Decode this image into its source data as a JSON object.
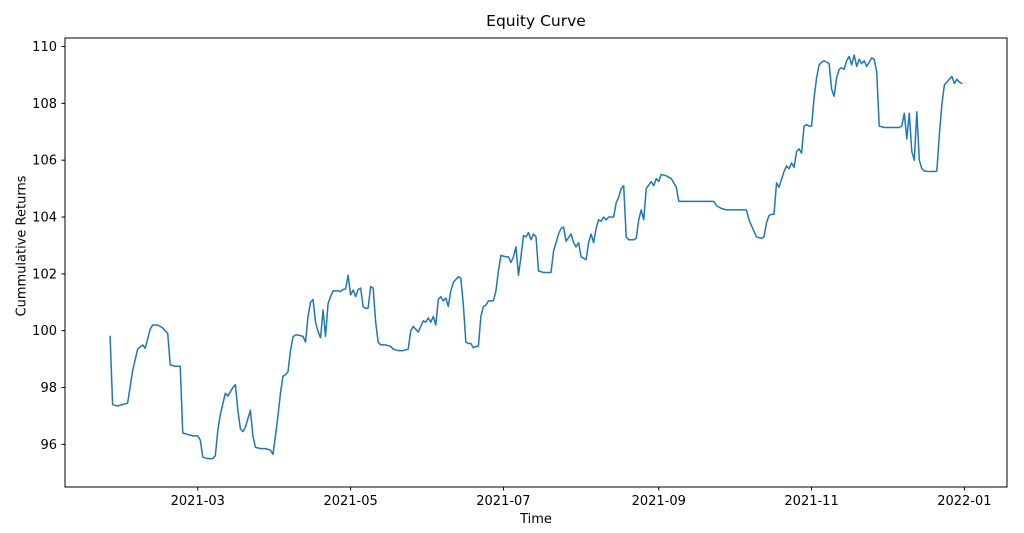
{
  "chart_data": {
    "type": "line",
    "title": "Equity Curve",
    "xlabel": "Time",
    "ylabel": "Cummulative Returns",
    "line_color": "#1f77b4",
    "background_color": "#ffffff",
    "axes_color": "#000000",
    "grid": false,
    "legend": null,
    "xlim": [
      "2021-01-07",
      "2022-01-18"
    ],
    "ylim": [
      94.5,
      110.3
    ],
    "y_ticks": [
      96,
      98,
      100,
      102,
      104,
      106,
      108,
      110
    ],
    "x_ticks": [
      {
        "date": "2021-03-01",
        "label": "2021-03"
      },
      {
        "date": "2021-05-01",
        "label": "2021-05"
      },
      {
        "date": "2021-07-01",
        "label": "2021-07"
      },
      {
        "date": "2021-09-01",
        "label": "2021-09"
      },
      {
        "date": "2021-11-01",
        "label": "2021-11"
      },
      {
        "date": "2022-01-01",
        "label": "2022-01"
      }
    ],
    "series": [
      {
        "name": "Cummulative Returns",
        "points": [
          [
            "2021-01-25",
            99.8
          ],
          [
            "2021-01-26",
            97.4
          ],
          [
            "2021-01-28",
            97.35
          ],
          [
            "2021-01-30",
            97.4
          ],
          [
            "2021-02-01",
            97.45
          ],
          [
            "2021-02-03",
            98.6
          ],
          [
            "2021-02-05",
            99.35
          ],
          [
            "2021-02-07",
            99.5
          ],
          [
            "2021-02-08",
            99.38
          ],
          [
            "2021-02-10",
            100.05
          ],
          [
            "2021-02-11",
            100.2
          ],
          [
            "2021-02-13",
            100.2
          ],
          [
            "2021-02-15",
            100.1
          ],
          [
            "2021-02-16",
            100.0
          ],
          [
            "2021-02-17",
            99.9
          ],
          [
            "2021-02-18",
            98.8
          ],
          [
            "2021-02-20",
            98.75
          ],
          [
            "2021-02-22",
            98.75
          ],
          [
            "2021-02-23",
            96.4
          ],
          [
            "2021-02-25",
            96.35
          ],
          [
            "2021-02-27",
            96.3
          ],
          [
            "2021-03-01",
            96.3
          ],
          [
            "2021-03-02",
            96.15
          ],
          [
            "2021-03-03",
            95.55
          ],
          [
            "2021-03-05",
            95.5
          ],
          [
            "2021-03-07",
            95.5
          ],
          [
            "2021-03-08",
            95.6
          ],
          [
            "2021-03-09",
            96.5
          ],
          [
            "2021-03-10",
            97.05
          ],
          [
            "2021-03-12",
            97.8
          ],
          [
            "2021-03-13",
            97.7
          ],
          [
            "2021-03-15",
            98.0
          ],
          [
            "2021-03-16",
            98.1
          ],
          [
            "2021-03-17",
            97.2
          ],
          [
            "2021-03-18",
            96.55
          ],
          [
            "2021-03-19",
            96.45
          ],
          [
            "2021-03-20",
            96.6
          ],
          [
            "2021-03-22",
            97.2
          ],
          [
            "2021-03-23",
            96.3
          ],
          [
            "2021-03-24",
            95.9
          ],
          [
            "2021-03-26",
            95.85
          ],
          [
            "2021-03-28",
            95.85
          ],
          [
            "2021-03-30",
            95.8
          ],
          [
            "2021-03-31",
            95.65
          ],
          [
            "2021-04-01",
            96.3
          ],
          [
            "2021-04-02",
            97.0
          ],
          [
            "2021-04-03",
            97.8
          ],
          [
            "2021-04-04",
            98.4
          ],
          [
            "2021-04-05",
            98.45
          ],
          [
            "2021-04-06",
            98.55
          ],
          [
            "2021-04-07",
            99.3
          ],
          [
            "2021-04-08",
            99.78
          ],
          [
            "2021-04-09",
            99.85
          ],
          [
            "2021-04-10",
            99.85
          ],
          [
            "2021-04-12",
            99.8
          ],
          [
            "2021-04-13",
            99.6
          ],
          [
            "2021-04-14",
            100.5
          ],
          [
            "2021-04-15",
            101.0
          ],
          [
            "2021-04-16",
            101.1
          ],
          [
            "2021-04-17",
            100.3
          ],
          [
            "2021-04-18",
            99.97
          ],
          [
            "2021-04-19",
            99.75
          ],
          [
            "2021-04-20",
            100.73
          ],
          [
            "2021-04-21",
            99.8
          ],
          [
            "2021-04-22",
            100.95
          ],
          [
            "2021-04-23",
            101.2
          ],
          [
            "2021-04-24",
            101.4
          ],
          [
            "2021-04-26",
            101.4
          ],
          [
            "2021-04-27",
            101.38
          ],
          [
            "2021-04-28",
            101.45
          ],
          [
            "2021-04-29",
            101.47
          ],
          [
            "2021-04-30",
            101.95
          ],
          [
            "2021-05-01",
            101.26
          ],
          [
            "2021-05-02",
            101.43
          ],
          [
            "2021-05-03",
            101.2
          ],
          [
            "2021-05-04",
            101.45
          ],
          [
            "2021-05-05",
            101.5
          ],
          [
            "2021-05-06",
            100.85
          ],
          [
            "2021-05-07",
            100.78
          ],
          [
            "2021-05-08",
            100.8
          ],
          [
            "2021-05-09",
            101.55
          ],
          [
            "2021-05-10",
            101.5
          ],
          [
            "2021-05-11",
            100.3
          ],
          [
            "2021-05-12",
            99.6
          ],
          [
            "2021-05-13",
            99.5
          ],
          [
            "2021-05-15",
            99.5
          ],
          [
            "2021-05-17",
            99.45
          ],
          [
            "2021-05-18",
            99.35
          ],
          [
            "2021-05-20",
            99.3
          ],
          [
            "2021-05-22",
            99.3
          ],
          [
            "2021-05-24",
            99.35
          ],
          [
            "2021-05-25",
            100.0
          ],
          [
            "2021-05-26",
            100.15
          ],
          [
            "2021-05-28",
            99.95
          ],
          [
            "2021-05-30",
            100.35
          ],
          [
            "2021-05-31",
            100.3
          ],
          [
            "2021-06-01",
            100.45
          ],
          [
            "2021-06-02",
            100.3
          ],
          [
            "2021-06-03",
            100.5
          ],
          [
            "2021-06-04",
            100.2
          ],
          [
            "2021-06-05",
            101.1
          ],
          [
            "2021-06-06",
            101.2
          ],
          [
            "2021-06-07",
            101.05
          ],
          [
            "2021-06-08",
            101.15
          ],
          [
            "2021-06-09",
            100.85
          ],
          [
            "2021-06-10",
            101.4
          ],
          [
            "2021-06-11",
            101.7
          ],
          [
            "2021-06-12",
            101.8
          ],
          [
            "2021-06-13",
            101.9
          ],
          [
            "2021-06-14",
            101.85
          ],
          [
            "2021-06-15",
            100.9
          ],
          [
            "2021-06-16",
            99.6
          ],
          [
            "2021-06-17",
            99.55
          ],
          [
            "2021-06-18",
            99.55
          ],
          [
            "2021-06-19",
            99.4
          ],
          [
            "2021-06-20",
            99.45
          ],
          [
            "2021-06-21",
            99.45
          ],
          [
            "2021-06-22",
            100.5
          ],
          [
            "2021-06-23",
            100.85
          ],
          [
            "2021-06-24",
            100.9
          ],
          [
            "2021-06-25",
            101.05
          ],
          [
            "2021-06-27",
            101.05
          ],
          [
            "2021-06-28",
            101.4
          ],
          [
            "2021-06-29",
            102.1
          ],
          [
            "2021-06-30",
            102.65
          ],
          [
            "2021-07-02",
            102.6
          ],
          [
            "2021-07-03",
            102.6
          ],
          [
            "2021-07-04",
            102.4
          ],
          [
            "2021-07-05",
            102.6
          ],
          [
            "2021-07-06",
            102.95
          ],
          [
            "2021-07-07",
            101.95
          ],
          [
            "2021-07-08",
            102.6
          ],
          [
            "2021-07-09",
            103.35
          ],
          [
            "2021-07-10",
            103.3
          ],
          [
            "2021-07-11",
            103.45
          ],
          [
            "2021-07-12",
            103.2
          ],
          [
            "2021-07-13",
            103.4
          ],
          [
            "2021-07-14",
            103.3
          ],
          [
            "2021-07-15",
            102.1
          ],
          [
            "2021-07-17",
            102.05
          ],
          [
            "2021-07-19",
            102.05
          ],
          [
            "2021-07-20",
            102.05
          ],
          [
            "2021-07-21",
            102.8
          ],
          [
            "2021-07-23",
            103.4
          ],
          [
            "2021-07-24",
            103.6
          ],
          [
            "2021-07-25",
            103.65
          ],
          [
            "2021-07-26",
            103.15
          ],
          [
            "2021-07-28",
            103.4
          ],
          [
            "2021-07-29",
            103.1
          ],
          [
            "2021-07-30",
            102.95
          ],
          [
            "2021-07-31",
            103.1
          ],
          [
            "2021-08-01",
            102.6
          ],
          [
            "2021-08-03",
            102.5
          ],
          [
            "2021-08-04",
            103.1
          ],
          [
            "2021-08-05",
            103.4
          ],
          [
            "2021-08-06",
            103.1
          ],
          [
            "2021-08-07",
            103.6
          ],
          [
            "2021-08-08",
            103.9
          ],
          [
            "2021-08-09",
            103.85
          ],
          [
            "2021-08-10",
            104.0
          ],
          [
            "2021-08-11",
            103.9
          ],
          [
            "2021-08-12",
            104.0
          ],
          [
            "2021-08-14",
            104.0
          ],
          [
            "2021-08-15",
            104.5
          ],
          [
            "2021-08-16",
            104.7
          ],
          [
            "2021-08-17",
            105.0
          ],
          [
            "2021-08-18",
            105.1
          ],
          [
            "2021-08-19",
            103.3
          ],
          [
            "2021-08-20",
            103.2
          ],
          [
            "2021-08-22",
            103.2
          ],
          [
            "2021-08-23",
            103.25
          ],
          [
            "2021-08-24",
            103.9
          ],
          [
            "2021-08-25",
            104.25
          ],
          [
            "2021-08-26",
            103.9
          ],
          [
            "2021-08-27",
            105.0
          ],
          [
            "2021-08-29",
            105.25
          ],
          [
            "2021-08-30",
            105.1
          ],
          [
            "2021-08-31",
            105.35
          ],
          [
            "2021-09-01",
            105.25
          ],
          [
            "2021-09-02",
            105.5
          ],
          [
            "2021-09-04",
            105.45
          ],
          [
            "2021-09-06",
            105.35
          ],
          [
            "2021-09-07",
            105.2
          ],
          [
            "2021-09-08",
            105.05
          ],
          [
            "2021-09-09",
            104.55
          ],
          [
            "2021-09-11",
            104.55
          ],
          [
            "2021-09-14",
            104.55
          ],
          [
            "2021-09-17",
            104.55
          ],
          [
            "2021-09-20",
            104.55
          ],
          [
            "2021-09-23",
            104.55
          ],
          [
            "2021-09-24",
            104.4
          ],
          [
            "2021-09-26",
            104.3
          ],
          [
            "2021-09-28",
            104.25
          ],
          [
            "2021-10-01",
            104.25
          ],
          [
            "2021-10-04",
            104.25
          ],
          [
            "2021-10-06",
            104.25
          ],
          [
            "2021-10-07",
            103.9
          ],
          [
            "2021-10-09",
            103.5
          ],
          [
            "2021-10-10",
            103.3
          ],
          [
            "2021-10-12",
            103.25
          ],
          [
            "2021-10-13",
            103.3
          ],
          [
            "2021-10-14",
            103.8
          ],
          [
            "2021-10-15",
            104.05
          ],
          [
            "2021-10-16",
            104.1
          ],
          [
            "2021-10-17",
            104.1
          ],
          [
            "2021-10-18",
            105.2
          ],
          [
            "2021-10-19",
            105.05
          ],
          [
            "2021-10-21",
            105.6
          ],
          [
            "2021-10-22",
            105.8
          ],
          [
            "2021-10-23",
            105.7
          ],
          [
            "2021-10-24",
            105.9
          ],
          [
            "2021-10-25",
            105.75
          ],
          [
            "2021-10-26",
            106.3
          ],
          [
            "2021-10-27",
            106.4
          ],
          [
            "2021-10-28",
            106.25
          ],
          [
            "2021-10-29",
            107.2
          ],
          [
            "2021-10-30",
            107.25
          ],
          [
            "2021-10-31",
            107.2
          ],
          [
            "2021-11-01",
            107.2
          ],
          [
            "2021-11-02",
            108.2
          ],
          [
            "2021-11-03",
            108.9
          ],
          [
            "2021-11-04",
            109.35
          ],
          [
            "2021-11-05",
            109.45
          ],
          [
            "2021-11-06",
            109.5
          ],
          [
            "2021-11-07",
            109.45
          ],
          [
            "2021-11-08",
            109.4
          ],
          [
            "2021-11-09",
            108.5
          ],
          [
            "2021-11-10",
            108.25
          ],
          [
            "2021-11-11",
            108.9
          ],
          [
            "2021-11-12",
            109.2
          ],
          [
            "2021-11-13",
            109.25
          ],
          [
            "2021-11-14",
            109.2
          ],
          [
            "2021-11-15",
            109.5
          ],
          [
            "2021-11-16",
            109.65
          ],
          [
            "2021-11-17",
            109.35
          ],
          [
            "2021-11-18",
            109.7
          ],
          [
            "2021-11-19",
            109.3
          ],
          [
            "2021-11-20",
            109.55
          ],
          [
            "2021-11-21",
            109.4
          ],
          [
            "2021-11-22",
            109.5
          ],
          [
            "2021-11-23",
            109.3
          ],
          [
            "2021-11-24",
            109.45
          ],
          [
            "2021-11-25",
            109.6
          ],
          [
            "2021-11-26",
            109.55
          ],
          [
            "2021-11-27",
            109.1
          ],
          [
            "2021-11-28",
            107.2
          ],
          [
            "2021-11-30",
            107.15
          ],
          [
            "2021-12-02",
            107.15
          ],
          [
            "2021-12-04",
            107.15
          ],
          [
            "2021-12-06",
            107.15
          ],
          [
            "2021-12-07",
            107.2
          ],
          [
            "2021-12-08",
            107.65
          ],
          [
            "2021-12-09",
            106.75
          ],
          [
            "2021-12-10",
            107.65
          ],
          [
            "2021-12-11",
            106.3
          ],
          [
            "2021-12-12",
            106.0
          ],
          [
            "2021-12-13",
            107.7
          ],
          [
            "2021-12-14",
            106.0
          ],
          [
            "2021-12-15",
            105.7
          ],
          [
            "2021-12-16",
            105.62
          ],
          [
            "2021-12-18",
            105.6
          ],
          [
            "2021-12-20",
            105.6
          ],
          [
            "2021-12-21",
            105.62
          ],
          [
            "2021-12-22",
            106.9
          ],
          [
            "2021-12-23",
            107.95
          ],
          [
            "2021-12-24",
            108.65
          ],
          [
            "2021-12-26",
            108.85
          ],
          [
            "2021-12-27",
            108.95
          ],
          [
            "2021-12-28",
            108.7
          ],
          [
            "2021-12-29",
            108.85
          ],
          [
            "2021-12-30",
            108.75
          ],
          [
            "2021-12-31",
            108.7
          ]
        ]
      }
    ]
  }
}
